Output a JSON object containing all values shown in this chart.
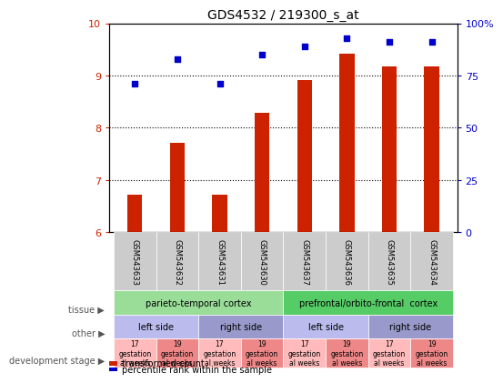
{
  "title": "GDS4532 / 219300_s_at",
  "samples": [
    "GSM543633",
    "GSM543632",
    "GSM543631",
    "GSM543630",
    "GSM543637",
    "GSM543636",
    "GSM543635",
    "GSM543634"
  ],
  "bar_values": [
    6.72,
    7.72,
    6.72,
    8.28,
    8.92,
    9.42,
    9.18,
    9.18
  ],
  "scatter_values": [
    71,
    83,
    71,
    85,
    89,
    93,
    91,
    91
  ],
  "ylim_left": [
    6,
    10
  ],
  "ylim_right": [
    0,
    100
  ],
  "yticks_left": [
    6,
    7,
    8,
    9,
    10
  ],
  "yticks_right": [
    0,
    25,
    50,
    75,
    100
  ],
  "yticklabels_right": [
    "0",
    "25",
    "50",
    "75",
    "100%"
  ],
  "bar_color": "#cc2200",
  "scatter_color": "#0000cc",
  "tissue_row": [
    {
      "label": "parieto-temporal cortex",
      "start": 0,
      "end": 4,
      "color": "#99dd99"
    },
    {
      "label": "prefrontal/orbito-frontal  cortex",
      "start": 4,
      "end": 8,
      "color": "#55cc66"
    }
  ],
  "other_row": [
    {
      "label": "left side",
      "start": 0,
      "end": 2,
      "color": "#bbbbee"
    },
    {
      "label": "right side",
      "start": 2,
      "end": 4,
      "color": "#9999cc"
    },
    {
      "label": "left side",
      "start": 4,
      "end": 6,
      "color": "#bbbbee"
    },
    {
      "label": "right side",
      "start": 6,
      "end": 8,
      "color": "#9999cc"
    }
  ],
  "dev_row": [
    {
      "label": "17\ngestation\nal weeks",
      "start": 0,
      "end": 1,
      "color": "#ffbbbb"
    },
    {
      "label": "19\ngestation\nal weeks",
      "start": 1,
      "end": 2,
      "color": "#ee8888"
    },
    {
      "label": "17\ngestation\nal weeks",
      "start": 2,
      "end": 3,
      "color": "#ffbbbb"
    },
    {
      "label": "19\ngestation\nal weeks",
      "start": 3,
      "end": 4,
      "color": "#ee8888"
    },
    {
      "label": "17\ngestation\nal weeks",
      "start": 4,
      "end": 5,
      "color": "#ffbbbb"
    },
    {
      "label": "19\ngestation\nal weeks",
      "start": 5,
      "end": 6,
      "color": "#ee8888"
    },
    {
      "label": "17\ngestation\nal weeks",
      "start": 6,
      "end": 7,
      "color": "#ffbbbb"
    },
    {
      "label": "19\ngestation\nal weeks",
      "start": 7,
      "end": 8,
      "color": "#ee8888"
    }
  ],
  "sample_box_color": "#cccccc",
  "background_color": "#ffffff",
  "legend_bar_label": "transformed count",
  "legend_scatter_label": "percentile rank within the sample"
}
